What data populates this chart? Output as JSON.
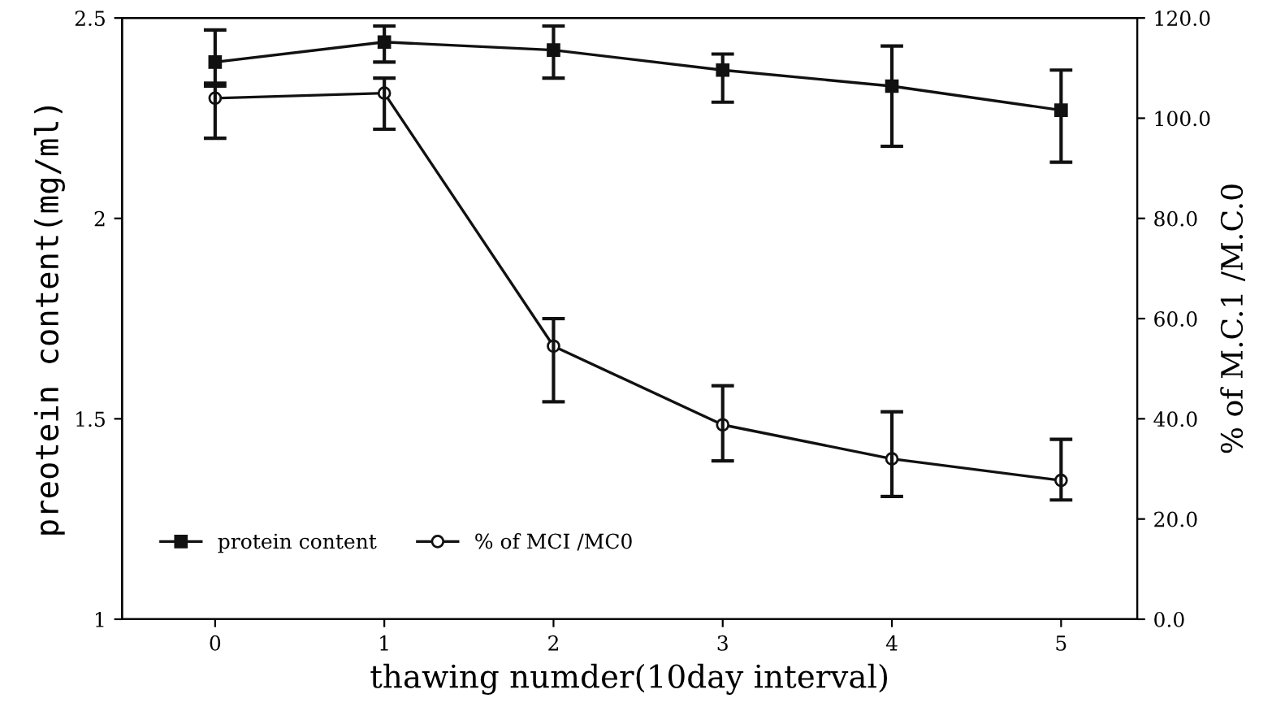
{
  "chart_data": {
    "type": "line",
    "xlabel": "thawing numder(10day interval)",
    "ylabel": "preotein content(mg/ml)",
    "y2label": "% of M.C.1 /M.C.0",
    "x": [
      0,
      1,
      2,
      3,
      4,
      5
    ],
    "xlim": [
      -0.55,
      5.45
    ],
    "xticks": [
      0,
      1,
      2,
      3,
      4,
      5
    ],
    "ylim": [
      1,
      2.5
    ],
    "yticks": [
      1,
      1.5,
      2,
      2.5
    ],
    "y2lim": [
      0,
      120
    ],
    "y2ticks": [
      {
        "value": 0,
        "label": "0.0"
      },
      {
        "value": 20,
        "label": "20.0"
      },
      {
        "value": 40,
        "label": "40.0"
      },
      {
        "value": 60,
        "label": "60.0"
      },
      {
        "value": 80,
        "label": "80.0"
      },
      {
        "value": 100,
        "label": "100.0"
      },
      {
        "value": 120,
        "label": "120.0"
      }
    ],
    "series": [
      {
        "name": "protein content",
        "color": "#111111",
        "marker": "square",
        "values": [
          2.39,
          2.44,
          2.42,
          2.37,
          2.33,
          2.27
        ],
        "errors": [
          [
            2.33,
            2.47
          ],
          [
            2.39,
            2.48
          ],
          [
            2.35,
            2.48
          ],
          [
            2.29,
            2.41
          ],
          [
            2.18,
            2.43
          ],
          [
            2.14,
            2.37
          ]
        ]
      },
      {
        "name": "% of MCI /MC0",
        "color": "#111111",
        "marker": "circle",
        "axis": "y2",
        "values": [
          104,
          105,
          54.5,
          38.8,
          32,
          27.7
        ],
        "errors": [
          [
            96,
            107
          ],
          [
            97.8,
            108
          ],
          [
            43.4,
            60
          ],
          [
            31.6,
            46.6
          ],
          [
            24.5,
            41.4
          ],
          [
            23.8,
            35.9
          ]
        ]
      }
    ],
    "legend": "bottom left",
    "grid": false,
    "line_style": "solid"
  }
}
